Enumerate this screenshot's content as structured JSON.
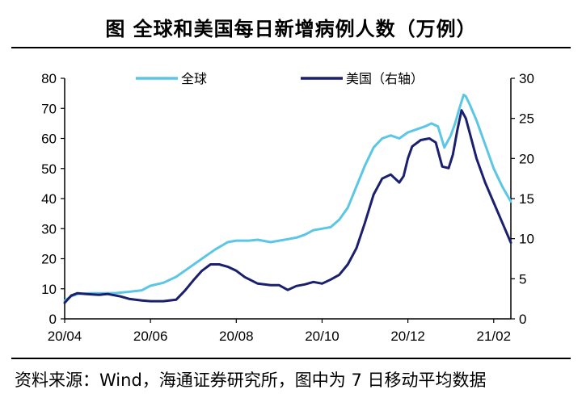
{
  "title": "图  全球和美国每日新增病例人数（万例）",
  "source": "资料来源：Wind，海通证券研究所，图中为 7 日移动平均数据",
  "chart_data": {
    "type": "line",
    "title": "图  全球和美国每日新增病例人数（万例）",
    "x_ticks": [
      "20/04",
      "20/06",
      "20/08",
      "20/10",
      "20/12",
      "21/02"
    ],
    "x_tick_positions": [
      0,
      2,
      4,
      6,
      8,
      10
    ],
    "xlim": [
      0,
      10.4
    ],
    "y_left": {
      "ticks": [
        0,
        10,
        20,
        30,
        40,
        50,
        60,
        70,
        80
      ],
      "ylim": [
        0,
        80
      ]
    },
    "y_right": {
      "ticks": [
        0,
        5,
        10,
        15,
        20,
        25,
        30
      ],
      "ylim": [
        0,
        30
      ]
    },
    "grid": false,
    "legend_position": "top",
    "series": [
      {
        "name": "全球",
        "axis": "left",
        "color": "#5bc6e6",
        "points": [
          [
            0.0,
            6
          ],
          [
            0.15,
            7.5
          ],
          [
            0.3,
            8.3
          ],
          [
            0.6,
            8.5
          ],
          [
            0.9,
            8.5
          ],
          [
            1.2,
            8.6
          ],
          [
            1.5,
            9
          ],
          [
            1.8,
            9.5
          ],
          [
            2.0,
            11
          ],
          [
            2.3,
            12
          ],
          [
            2.6,
            14
          ],
          [
            2.9,
            17
          ],
          [
            3.2,
            20
          ],
          [
            3.5,
            23
          ],
          [
            3.8,
            25.5
          ],
          [
            4.0,
            26
          ],
          [
            4.3,
            26
          ],
          [
            4.5,
            26.3
          ],
          [
            4.8,
            25.5
          ],
          [
            5.0,
            26
          ],
          [
            5.2,
            26.5
          ],
          [
            5.4,
            27
          ],
          [
            5.6,
            28
          ],
          [
            5.8,
            29.5
          ],
          [
            6.0,
            30
          ],
          [
            6.2,
            30.5
          ],
          [
            6.4,
            33
          ],
          [
            6.6,
            37
          ],
          [
            6.8,
            44
          ],
          [
            7.0,
            51
          ],
          [
            7.2,
            57
          ],
          [
            7.4,
            60
          ],
          [
            7.6,
            61
          ],
          [
            7.8,
            60
          ],
          [
            8.0,
            62
          ],
          [
            8.2,
            63
          ],
          [
            8.4,
            64
          ],
          [
            8.55,
            65
          ],
          [
            8.7,
            64
          ],
          [
            8.85,
            57
          ],
          [
            9.0,
            61
          ],
          [
            9.1,
            65
          ],
          [
            9.2,
            70
          ],
          [
            9.3,
            74.5
          ],
          [
            9.35,
            74
          ],
          [
            9.45,
            71
          ],
          [
            9.6,
            66
          ],
          [
            9.8,
            58
          ],
          [
            10.0,
            50
          ],
          [
            10.2,
            44
          ],
          [
            10.4,
            39
          ]
        ]
      },
      {
        "name": "美国（右轴）",
        "axis": "right",
        "color": "#1a1f6e",
        "points": [
          [
            0.0,
            2.0
          ],
          [
            0.15,
            2.9
          ],
          [
            0.3,
            3.2
          ],
          [
            0.5,
            3.1
          ],
          [
            0.8,
            3.0
          ],
          [
            1.0,
            3.1
          ],
          [
            1.3,
            2.8
          ],
          [
            1.5,
            2.5
          ],
          [
            1.8,
            2.3
          ],
          [
            2.0,
            2.2
          ],
          [
            2.3,
            2.2
          ],
          [
            2.6,
            2.4
          ],
          [
            2.8,
            3.5
          ],
          [
            3.0,
            4.8
          ],
          [
            3.2,
            6.0
          ],
          [
            3.4,
            6.8
          ],
          [
            3.6,
            6.8
          ],
          [
            3.8,
            6.5
          ],
          [
            4.0,
            6.0
          ],
          [
            4.2,
            5.2
          ],
          [
            4.5,
            4.4
          ],
          [
            4.8,
            4.2
          ],
          [
            5.0,
            4.2
          ],
          [
            5.2,
            3.6
          ],
          [
            5.4,
            4.1
          ],
          [
            5.6,
            4.3
          ],
          [
            5.8,
            4.6
          ],
          [
            6.0,
            4.4
          ],
          [
            6.2,
            4.9
          ],
          [
            6.4,
            5.5
          ],
          [
            6.6,
            6.8
          ],
          [
            6.8,
            8.8
          ],
          [
            7.0,
            12.0
          ],
          [
            7.2,
            15.5
          ],
          [
            7.4,
            17.5
          ],
          [
            7.6,
            18.0
          ],
          [
            7.8,
            17.0
          ],
          [
            7.9,
            17.8
          ],
          [
            8.0,
            20.0
          ],
          [
            8.1,
            21.5
          ],
          [
            8.3,
            22.3
          ],
          [
            8.5,
            22.5
          ],
          [
            8.65,
            22.0
          ],
          [
            8.8,
            19.0
          ],
          [
            8.95,
            18.8
          ],
          [
            9.05,
            20.5
          ],
          [
            9.15,
            23.5
          ],
          [
            9.25,
            26.0
          ],
          [
            9.35,
            25.0
          ],
          [
            9.45,
            23.0
          ],
          [
            9.6,
            20.0
          ],
          [
            9.8,
            17.0
          ],
          [
            10.0,
            14.5
          ],
          [
            10.2,
            12.0
          ],
          [
            10.4,
            9.5
          ]
        ]
      }
    ]
  }
}
